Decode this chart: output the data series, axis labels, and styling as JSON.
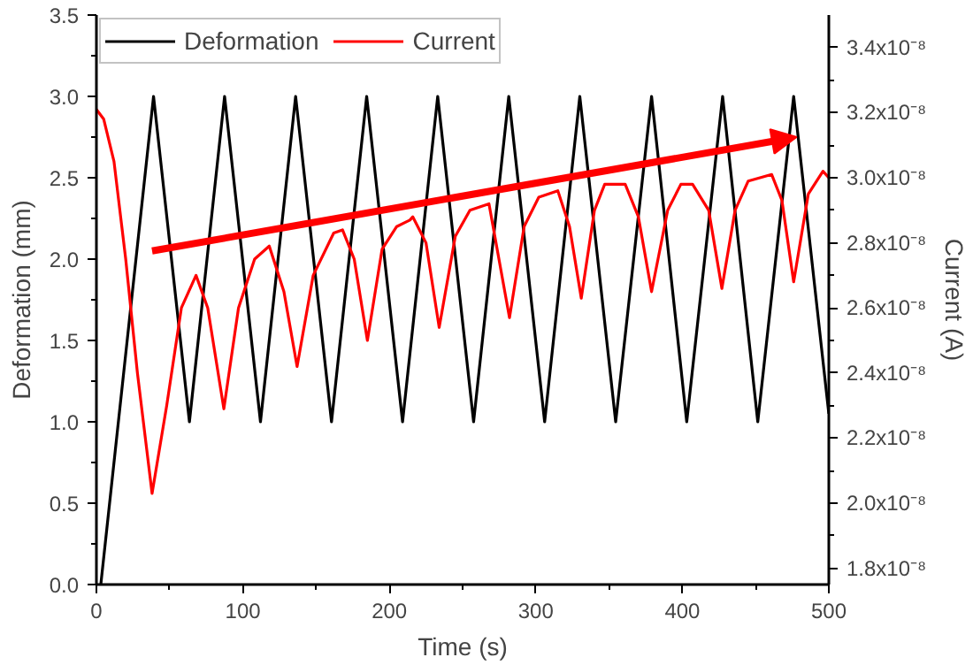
{
  "chart_data": {
    "type": "line",
    "xlabel": "Time (s)",
    "ylabel": "Deformation (mm)",
    "y2label": "Current (A)",
    "xlim": [
      0,
      500
    ],
    "xticks": [
      0,
      100,
      200,
      300,
      400,
      500
    ],
    "ylim": [
      0,
      3.5
    ],
    "yticks": [
      {
        "value": 0,
        "label": "0.0"
      },
      {
        "value": 0.5,
        "label": "0.5"
      },
      {
        "value": 1,
        "label": "1.0"
      },
      {
        "value": 1.5,
        "label": "1.5"
      },
      {
        "value": 2,
        "label": "2.0"
      },
      {
        "value": 2.5,
        "label": "2.5"
      },
      {
        "value": 3,
        "label": "3.0"
      },
      {
        "value": 3.5,
        "label": "3.5"
      }
    ],
    "y2lim": [
      1.75e-08,
      3.5e-08
    ],
    "y2ticks": [
      {
        "value": 1.8e-08,
        "label": "1.8x10⁻⁸"
      },
      {
        "value": 2e-08,
        "label": "2.0x10⁻⁸"
      },
      {
        "value": 2.2e-08,
        "label": "2.2x10⁻⁸"
      },
      {
        "value": 2.4e-08,
        "label": "2.4x10⁻⁸"
      },
      {
        "value": 2.6e-08,
        "label": "2.6x10⁻⁸"
      },
      {
        "value": 2.8e-08,
        "label": "2.8x10⁻⁸"
      },
      {
        "value": 3e-08,
        "label": "3.0x10⁻⁸"
      },
      {
        "value": 3.2e-08,
        "label": "3.2x10⁻⁸"
      },
      {
        "value": 3.4e-08,
        "label": "3.4x10⁻⁸"
      }
    ],
    "grid": false,
    "legend": "top left",
    "marker": "none",
    "line_style": "solid",
    "series": [
      {
        "name": "Deformation",
        "color": "#000000",
        "x": [
          3,
          39,
          63.5,
          87.5,
          112,
          136,
          160.5,
          184.5,
          209,
          233,
          257.5,
          281.5,
          306,
          330,
          354.5,
          379,
          403,
          427.5,
          451.5,
          476,
          500
        ],
        "values": [
          0,
          3,
          1,
          3,
          1,
          3,
          1,
          3,
          1,
          3,
          1,
          3,
          1,
          3,
          1,
          3,
          1,
          3,
          1,
          3,
          1.05
        ]
      },
      {
        "name": "Current",
        "color": "#ff0000",
        "axis": "y2",
        "x": [
          0,
          5,
          12,
          20,
          28,
          38,
          48,
          58,
          68,
          76,
          87,
          97,
          108,
          118,
          128,
          137,
          148,
          162,
          168,
          176,
          185,
          195,
          205,
          214,
          216,
          225,
          234,
          245,
          255,
          268,
          282,
          292,
          302,
          315,
          323,
          331,
          340,
          347,
          361,
          370,
          379,
          390,
          399,
          407,
          418,
          427,
          436,
          445,
          461,
          468,
          476,
          486,
          496,
          500
        ],
        "values": [
          3.21e-08,
          3.18e-08,
          3.05e-08,
          2.75e-08,
          2.4e-08,
          2.03e-08,
          2.3e-08,
          2.6e-08,
          2.7e-08,
          2.6e-08,
          2.29e-08,
          2.6e-08,
          2.75e-08,
          2.79e-08,
          2.65e-08,
          2.42e-08,
          2.7e-08,
          2.83e-08,
          2.84e-08,
          2.75e-08,
          2.5e-08,
          2.78e-08,
          2.85e-08,
          2.87e-08,
          2.88e-08,
          2.8e-08,
          2.54e-08,
          2.82e-08,
          2.9e-08,
          2.92e-08,
          2.57e-08,
          2.85e-08,
          2.94e-08,
          2.96e-08,
          2.85e-08,
          2.63e-08,
          2.9e-08,
          2.98e-08,
          2.98e-08,
          2.88e-08,
          2.65e-08,
          2.9e-08,
          2.98e-08,
          2.98e-08,
          2.9e-08,
          2.66e-08,
          2.9e-08,
          2.99e-08,
          3.01e-08,
          2.93e-08,
          2.68e-08,
          2.95e-08,
          3.02e-08,
          3e-08
        ]
      }
    ]
  }
}
